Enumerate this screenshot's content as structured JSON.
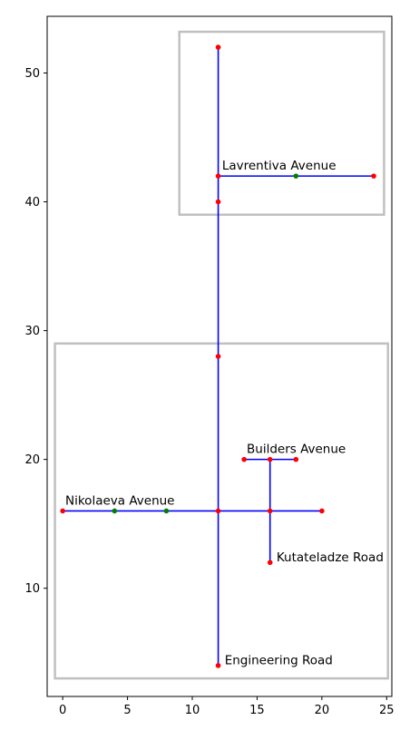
{
  "chart_data": {
    "type": "scatter",
    "title": "",
    "xlabel": "",
    "ylabel": "",
    "xlim": [
      -1.2,
      25.4
    ],
    "ylim": [
      1.6,
      54.4
    ],
    "x_ticks": [
      0,
      5,
      10,
      15,
      20,
      25
    ],
    "y_ticks": [
      10,
      20,
      30,
      40,
      50
    ],
    "grid": false,
    "legend": "none",
    "colors": {
      "road": "#0000ff",
      "red_point": "#ff0000",
      "green_point": "#008000",
      "zone": "#c0c0c0"
    },
    "zones": [
      {
        "x": [
          9,
          24.8
        ],
        "y": [
          39,
          53.2
        ]
      },
      {
        "x": [
          -0.6,
          25.1
        ],
        "y": [
          3,
          29
        ]
      }
    ],
    "roads": [
      {
        "name": "",
        "points": [
          [
            12,
            52
          ],
          [
            12,
            4
          ]
        ]
      },
      {
        "name": "Lavrentiva Avenue",
        "points": [
          [
            12,
            42
          ],
          [
            24,
            42
          ]
        ]
      },
      {
        "name": "Nikolaeva Avenue",
        "points": [
          [
            0,
            16
          ],
          [
            20,
            16
          ]
        ]
      },
      {
        "name": "Builders Avenue",
        "points": [
          [
            14,
            20
          ],
          [
            18,
            20
          ]
        ]
      },
      {
        "name": "Kutateladze Road",
        "points": [
          [
            16,
            20
          ],
          [
            16,
            12
          ]
        ]
      }
    ],
    "labels": [
      {
        "text": "Lavrentiva Avenue",
        "x": 12.3,
        "y": 42.5
      },
      {
        "text": "Builders Avenue",
        "x": 14.2,
        "y": 20.5
      },
      {
        "text": "Nikolaeva Avenue",
        "x": 0.2,
        "y": 16.5
      },
      {
        "text": "Kutateladze Road",
        "x": 16.5,
        "y": 12.1
      },
      {
        "text": "Engineering Road",
        "x": 12.5,
        "y": 4.1
      }
    ],
    "red_points": [
      [
        12,
        52
      ],
      [
        12,
        42
      ],
      [
        24,
        42
      ],
      [
        12,
        40
      ],
      [
        12,
        28
      ],
      [
        14,
        20
      ],
      [
        16,
        20
      ],
      [
        18,
        20
      ],
      [
        0,
        16
      ],
      [
        12,
        16
      ],
      [
        16,
        16
      ],
      [
        20,
        16
      ],
      [
        16,
        12
      ],
      [
        12,
        4
      ]
    ],
    "green_points": [
      [
        18,
        42
      ],
      [
        4,
        16
      ],
      [
        8,
        16
      ]
    ]
  }
}
